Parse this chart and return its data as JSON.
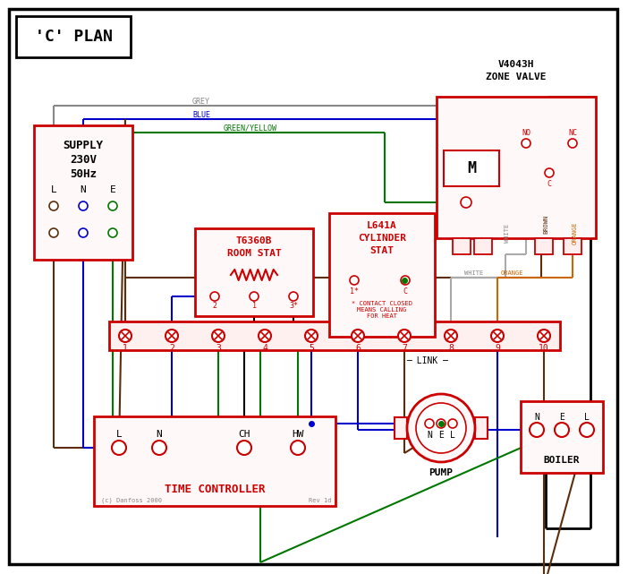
{
  "bg": "#ffffff",
  "bk": "#000000",
  "red": "#cc0000",
  "blue": "#0000cc",
  "green": "#007700",
  "brown": "#5c2d0a",
  "grey": "#888888",
  "orange": "#cc6600",
  "white_w": "#aaaaaa",
  "title": "'C' PLAN",
  "supply1": "SUPPLY",
  "supply2": "230V",
  "supply3": "50Hz",
  "lne": [
    "L",
    "N",
    "E"
  ],
  "zone_v1": "V4043H",
  "zone_v2": "ZONE VALVE",
  "room_stat1": "T6360B",
  "room_stat2": "ROOM STAT",
  "cyl1": "L641A",
  "cyl2": "CYLINDER",
  "cyl3": "STAT",
  "cyl_note": "* CONTACT CLOSED\nMEANS CALLING\nFOR HEAT",
  "tc_label": "TIME CONTROLLER",
  "tc_terms": [
    "L",
    "N",
    "CH",
    "HW"
  ],
  "pump_label": "PUMP",
  "boiler_label": "BOILER",
  "nel": [
    "N",
    "E",
    "L"
  ],
  "terminals": [
    "1",
    "2",
    "3",
    "4",
    "5",
    "6",
    "7",
    "8",
    "9",
    "10"
  ],
  "link_label": "LINK",
  "grey_lbl": "GREY",
  "blue_lbl": "BLUE",
  "gy_lbl": "GREEN/YELLOW",
  "brown_lbl": "BROWN",
  "white_lbl": "WHITE",
  "orange_lbl": "ORANGE",
  "copyright": "(c) Danfoss 2000",
  "rev": "Rev 1d",
  "no_lbl": "NO",
  "nc_lbl": "NC",
  "c_lbl": "C",
  "m_lbl": "M"
}
